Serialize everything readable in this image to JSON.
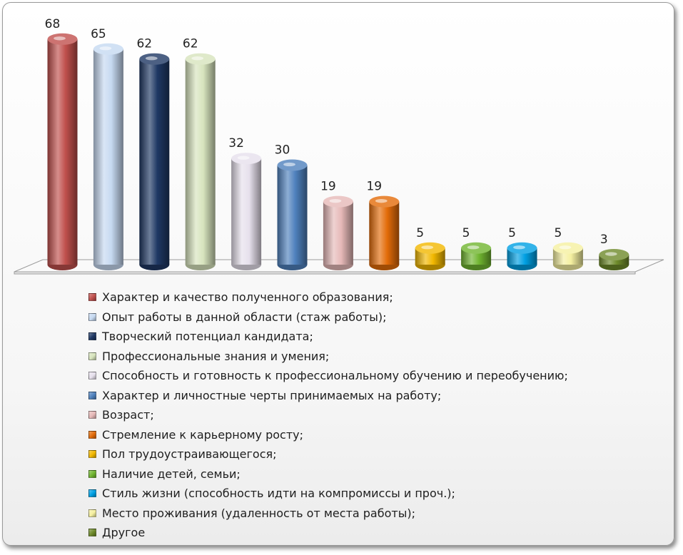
{
  "chart_data": {
    "type": "bar",
    "ylim": [
      0,
      68
    ],
    "grid": false,
    "legend_position": "bottom",
    "series": [
      {
        "name": "Характер и качество полученного образования;",
        "value": 68,
        "color": "#c0504d"
      },
      {
        "name": "Опыт работы в данной области (стаж работы);",
        "value": 65,
        "color": "#c6d9f1"
      },
      {
        "name": "Творческий потенциал кандидата;",
        "value": 62,
        "color": "#1f3864"
      },
      {
        "name": "Профессиональные знания и умения;",
        "value": 62,
        "color": "#d7e4bd"
      },
      {
        "name": "Способность и готовность к профессиональному обучению и переобучению;",
        "value": 32,
        "color": "#e6e0ec"
      },
      {
        "name": "Характер и личностные черты принимаемых на работу;",
        "value": 30,
        "color": "#4f81bd"
      },
      {
        "name": "Возраст;",
        "value": 19,
        "color": "#e6b9b8"
      },
      {
        "name": "Стремление к карьерному росту;",
        "value": 19,
        "color": "#e36c09"
      },
      {
        "name": "Пол трудоустраивающегося;",
        "value": 5,
        "color": "#f2b800"
      },
      {
        "name": "Наличие детей, семьи;",
        "value": 5,
        "color": "#70b530"
      },
      {
        "name": "Стиль жизни (способность идти на компромиссы и проч.);",
        "value": 5,
        "color": "#00a0e3"
      },
      {
        "name": "Место проживания (удаленность от места работы);",
        "value": 5,
        "color": "#f5f0a0"
      },
      {
        "name": "Другое",
        "value": 3,
        "color": "#6e8a2a"
      }
    ]
  }
}
